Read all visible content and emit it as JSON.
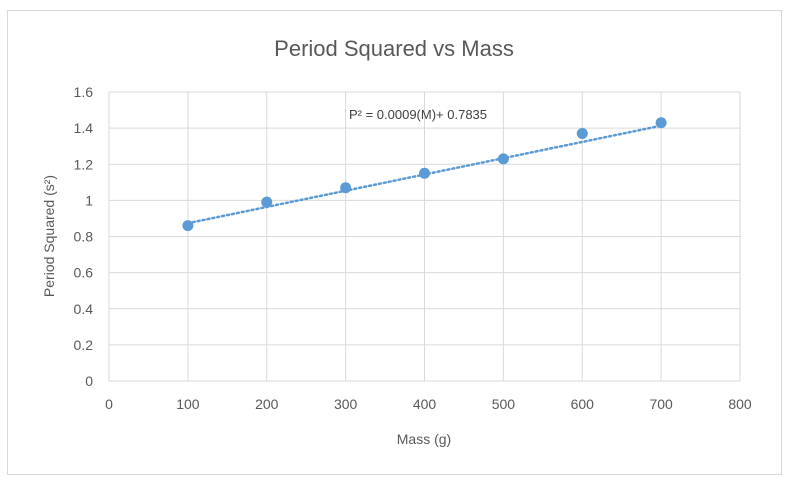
{
  "chart_data": {
    "type": "scatter",
    "title": "Period Squared vs Mass",
    "xlabel": "Mass (g)",
    "ylabel": "Period Squared (s²)",
    "xlim": [
      0,
      800
    ],
    "ylim": [
      0,
      1.6
    ],
    "xticks": [
      "0",
      "100",
      "200",
      "300",
      "400",
      "500",
      "600",
      "700",
      "800"
    ],
    "yticks": [
      "0",
      "0.2",
      "0.4",
      "0.6",
      "0.8",
      "1",
      "1.2",
      "1.4",
      "1.6"
    ],
    "grid": true,
    "series": [
      {
        "x": [
          100,
          200,
          300,
          400,
          500,
          600,
          700
        ],
        "y": [
          0.86,
          0.99,
          1.07,
          1.15,
          1.23,
          1.37,
          1.43
        ]
      }
    ],
    "trendline": {
      "type": "linear",
      "slope": 0.0009,
      "intercept": 0.7835,
      "x_range": [
        100,
        700
      ],
      "label": "P² = 0.0009(M)+ 0.7835"
    },
    "colors": {
      "marker": "#5b9bd5",
      "trendline": "#5b9bd5",
      "grid": "#d9d9d9",
      "text": "#595959"
    }
  }
}
